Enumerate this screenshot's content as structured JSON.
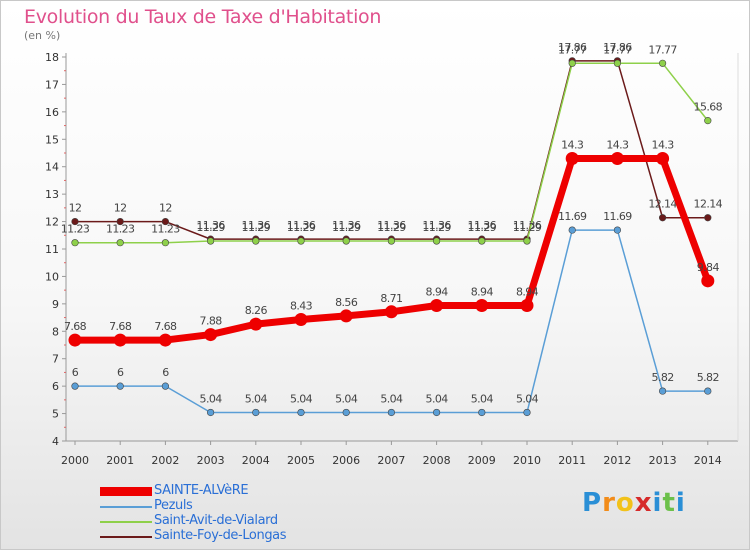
{
  "header": {
    "title": "Evolution du Taux de Taxe d'Habitation",
    "unit": "(en %)"
  },
  "chart_data": {
    "type": "line",
    "x": [
      "2000",
      "2001",
      "2002",
      "2003",
      "2004",
      "2005",
      "2006",
      "2007",
      "2008",
      "2009",
      "2010",
      "2011",
      "2012",
      "2013",
      "2014"
    ],
    "ylim": [
      4,
      18
    ],
    "yticks": [
      4,
      5,
      6,
      7,
      8,
      9,
      10,
      11,
      12,
      13,
      14,
      15,
      16,
      17,
      18
    ],
    "grid": false,
    "legend_position": "bottom-left",
    "series": [
      {
        "name": "Sainte-Foy-de-Longas",
        "color": "#6b1a1a",
        "values": [
          12,
          12,
          12,
          11.36,
          11.36,
          11.36,
          11.36,
          11.36,
          11.36,
          11.36,
          11.36,
          17.86,
          17.86,
          12.14,
          12.14
        ],
        "labels": [
          "12",
          "12",
          "12",
          "11.36",
          "11.36",
          "11.36",
          "11.36",
          "11.36",
          "11.36",
          "11.36",
          "11.36",
          "17.86",
          "17.86",
          "12.14",
          "12.14"
        ]
      },
      {
        "name": "Saint-Avit-de-Vialard",
        "color": "#8ed04a",
        "values": [
          11.23,
          11.23,
          11.23,
          11.29,
          11.29,
          11.29,
          11.29,
          11.29,
          11.29,
          11.29,
          11.29,
          17.77,
          17.77,
          17.77,
          15.68
        ],
        "labels": [
          "11.23",
          "11.23",
          "11.23",
          "11.29",
          "11.29",
          "11.29",
          "11.29",
          "11.29",
          "11.29",
          "11.29",
          "11.29",
          "17.77",
          "17.77",
          "17.77",
          "15.68"
        ]
      },
      {
        "name": "Pezuls",
        "color": "#5a9ed6",
        "values": [
          6,
          6,
          6,
          5.04,
          5.04,
          5.04,
          5.04,
          5.04,
          5.04,
          5.04,
          5.04,
          11.69,
          11.69,
          5.82,
          5.82
        ],
        "labels": [
          "6",
          "6",
          "6",
          "5.04",
          "5.04",
          "5.04",
          "5.04",
          "5.04",
          "5.04",
          "5.04",
          "5.04",
          "11.69",
          "11.69",
          "5.82",
          "5.82"
        ]
      },
      {
        "name": "SAINTE-ALVèRE",
        "color": "#ee0000",
        "values": [
          7.68,
          7.68,
          7.68,
          7.88,
          8.26,
          8.43,
          8.56,
          8.71,
          8.94,
          8.94,
          8.94,
          14.3,
          14.3,
          14.3,
          9.84
        ],
        "labels": [
          "7.68",
          "7.68",
          "7.68",
          "7.88",
          "8.26",
          "8.43",
          "8.56",
          "8.71",
          "8.94",
          "8.94",
          "8.94",
          "14.3",
          "14.3",
          "14.3",
          "9.84"
        ]
      }
    ]
  },
  "legend": [
    {
      "name": "SAINTE-ALVèRE",
      "color": "#ee0000"
    },
    {
      "name": "Pezuls",
      "color": "#5a9ed6"
    },
    {
      "name": "Saint-Avit-de-Vialard",
      "color": "#8ed04a"
    },
    {
      "name": "Sainte-Foy-de-Longas",
      "color": "#6b1a1a"
    }
  ],
  "logo": {
    "letters": [
      "P",
      "r",
      "o",
      "x",
      "i",
      "t",
      "i"
    ],
    "colors": [
      "#2a8fd6",
      "#f28c1a",
      "#f2c21a",
      "#d62a2a",
      "#2a8fd6",
      "#6cc04a",
      "#2a8fd6"
    ]
  }
}
